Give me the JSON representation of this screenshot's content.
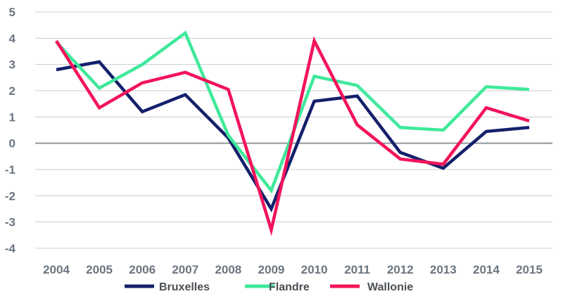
{
  "chart_data": {
    "type": "line",
    "categories": [
      "2004",
      "2005",
      "2006",
      "2007",
      "2008",
      "2009",
      "2010",
      "2011",
      "2012",
      "2013",
      "2014",
      "2015"
    ],
    "ylim": [
      -4,
      5
    ],
    "yticks": [
      5,
      4,
      3,
      2,
      1,
      0,
      -1,
      -2,
      -3,
      -4
    ],
    "grid": true,
    "legend_position": "bottom",
    "series": [
      {
        "name": "Bruxelles",
        "color": "#14206b",
        "values": [
          2.8,
          3.1,
          1.2,
          1.85,
          0.2,
          -2.5,
          1.6,
          1.8,
          -0.35,
          -0.95,
          0.45,
          0.6
        ]
      },
      {
        "name": "Flandre",
        "color": "#3fe99a",
        "values": [
          3.85,
          2.1,
          3.0,
          4.2,
          0.3,
          -1.8,
          2.55,
          2.2,
          0.6,
          0.5,
          2.15,
          2.05
        ]
      },
      {
        "name": "Wallonie",
        "color": "#f2145a",
        "values": [
          3.9,
          1.35,
          2.3,
          2.7,
          2.05,
          -3.3,
          3.9,
          0.7,
          -0.6,
          -0.8,
          1.35,
          0.85
        ]
      }
    ]
  }
}
